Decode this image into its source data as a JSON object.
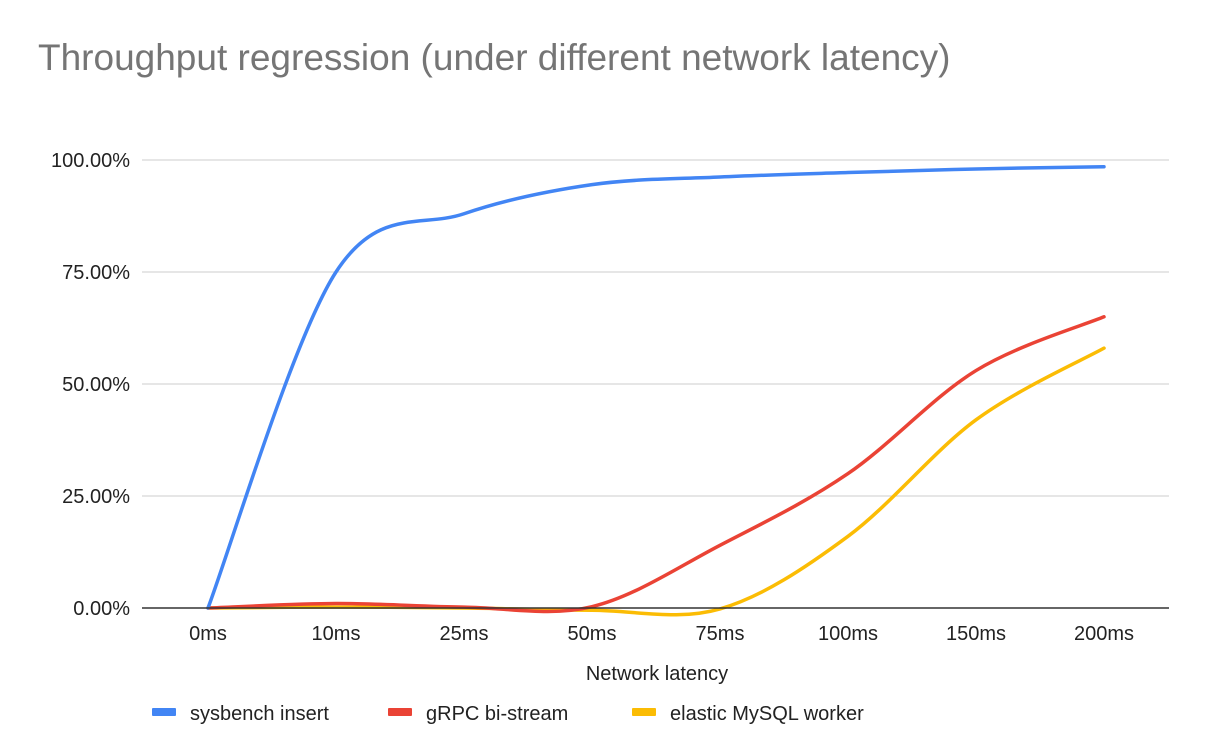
{
  "chart_data": {
    "type": "line",
    "title": "Throughput regression (under different network latency)",
    "xlabel": "Network latency",
    "ylabel": "",
    "categories": [
      "0ms",
      "10ms",
      "25ms",
      "50ms",
      "75ms",
      "100ms",
      "150ms",
      "200ms"
    ],
    "ylim": [
      0,
      1
    ],
    "y_ticks": [
      {
        "value": 0,
        "label": "0.00%"
      },
      {
        "value": 0.25,
        "label": "25.00%"
      },
      {
        "value": 0.5,
        "label": "50.00%"
      },
      {
        "value": 0.75,
        "label": "75.00%"
      },
      {
        "value": 1,
        "label": "100.00%"
      }
    ],
    "grid": true,
    "smooth": true,
    "legend_position": "bottom",
    "series": [
      {
        "name": "sysbench insert",
        "color": "#4285f4",
        "values": [
          0,
          0.75,
          0.88,
          0.945,
          0.962,
          0.972,
          0.98,
          0.985
        ]
      },
      {
        "name": "gRPC bi-stream",
        "color": "#ea4335",
        "values": [
          0,
          0.01,
          0.002,
          0.003,
          0.14,
          0.3,
          0.53,
          0.65
        ]
      },
      {
        "name": "elastic MySQL worker",
        "color": "#fbbc04",
        "values": [
          0,
          0.002,
          0,
          -0.005,
          -0.002,
          0.16,
          0.42,
          0.58
        ]
      }
    ]
  }
}
